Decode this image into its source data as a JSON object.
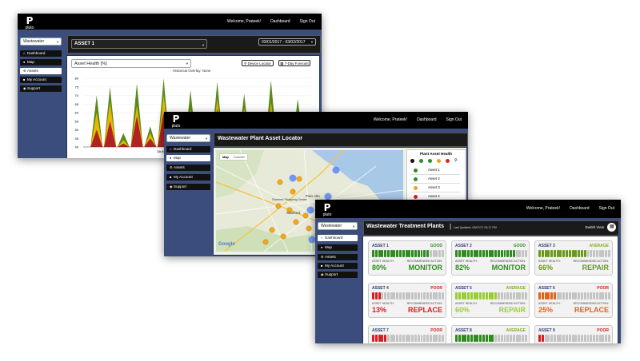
{
  "app": {
    "logo_text": "pluto",
    "logo_icon": "pluto-p-logo-icon"
  },
  "nav": {
    "welcome": "Welcome, Prateek!",
    "dashboard": "Dashboard",
    "signout": "Sign Out"
  },
  "sidebar": {
    "dropdown_value": "Wastewater",
    "items": [
      {
        "label": "Dashboard",
        "icon": "home-icon"
      },
      {
        "label": "Map",
        "icon": "map-pin-icon"
      },
      {
        "label": "Assets",
        "icon": "gear-icon"
      },
      {
        "label": "My Account",
        "icon": "user-icon"
      },
      {
        "label": "Support",
        "icon": "help-icon"
      }
    ]
  },
  "screen1": {
    "asset_select": "ASSET 1",
    "date_range": "03/01/2017 - 03/02/2017",
    "metric_select": "Asset Health [%]",
    "overlay": "Historical Overlay: None",
    "device_locator": "Device Locator",
    "forecast": "7-Day Forecast",
    "y_ticks": [
      "80",
      "75",
      "70",
      "65",
      "60",
      "55",
      "50",
      "45",
      "40"
    ],
    "x_ticks": [
      "3A AM",
      "06 AM"
    ]
  },
  "chart_data": {
    "type": "area",
    "title": "",
    "ylabel": "",
    "x_ticks_visible": [
      "3A AM",
      "06 AM"
    ],
    "ylim": [
      40,
      80
    ],
    "series": [
      {
        "color": "#5a8a1a",
        "values": [
          40,
          70,
          75,
          48,
          77,
          52,
          80,
          55,
          73,
          50,
          78,
          60,
          71,
          45,
          79,
          58,
          68,
          50
        ]
      },
      {
        "color": "#e8b800",
        "values": [
          40,
          60,
          66,
          44,
          64,
          48,
          70,
          50,
          62,
          46,
          68,
          55,
          63,
          43,
          66,
          52,
          58,
          46
        ]
      },
      {
        "color": "#b22222",
        "values": [
          40,
          50,
          55,
          42,
          58,
          45,
          60,
          47,
          55,
          44,
          62,
          50,
          56,
          42,
          60,
          48,
          52,
          44
        ]
      }
    ]
  },
  "screen2": {
    "title": "Wastewater Plant Asset Locator",
    "map_tab": "Map",
    "satellite_tab": "Satellite",
    "map_provider": "Google",
    "places": [
      {
        "name": "Palo Alto"
      },
      {
        "name": "Stanford"
      },
      {
        "name": "Stanford Shopping Center"
      }
    ],
    "legend_title": "Plant Asset Health",
    "legend_rows": [
      {
        "label": "Asset 1",
        "color": "#2e8b2e"
      },
      {
        "label": "Asset 2",
        "color": "#2e8b2e"
      },
      {
        "label": "Asset 3",
        "color": "#f0a020"
      },
      {
        "label": "Asset 4",
        "color": "#dd2222"
      }
    ]
  },
  "screen3": {
    "title": "Wastewater Treatment Plants",
    "last_updated": "Last Updated: 03/07/17 03:17 PM",
    "switch_view": "Switch View",
    "health_label": "ASSET HEALTH:",
    "action_label": "RECOMMENDED ACTION:",
    "assets": [
      {
        "name": "ASSET 1",
        "status": "GOOD",
        "health": "80%",
        "health_pct": 80,
        "action": "MONITOR",
        "color": "#2e8b1e"
      },
      {
        "name": "ASSET 2",
        "status": "GOOD",
        "health": "82%",
        "health_pct": 82,
        "action": "MONITOR",
        "color": "#2e8b1e"
      },
      {
        "name": "ASSET 3",
        "status": "AVERAGE",
        "health": "66%",
        "health_pct": 66,
        "action": "REPAIR",
        "color": "#6a9a1a"
      },
      {
        "name": "ASSET 4",
        "status": "POOR",
        "health": "13%",
        "health_pct": 13,
        "action": "REPLACE",
        "color": "#d42020"
      },
      {
        "name": "ASSET 5",
        "status": "AVERAGE",
        "health": "60%",
        "health_pct": 60,
        "action": "REPAIR",
        "color": "#9acd32"
      },
      {
        "name": "ASSET 6",
        "status": "POOR",
        "health": "25%",
        "health_pct": 25,
        "action": "REPLACE",
        "color": "#e0631a"
      },
      {
        "name": "ASSET 7",
        "status": "POOR",
        "health_pct": 20,
        "color": "#d42020"
      },
      {
        "name": "ASSET 8",
        "status": "AVERAGE",
        "health_pct": 55,
        "color": "#2e8b1e"
      },
      {
        "name": "ASSET 9",
        "status": "POOR",
        "health_pct": 10,
        "color": "#d42020"
      }
    ]
  }
}
